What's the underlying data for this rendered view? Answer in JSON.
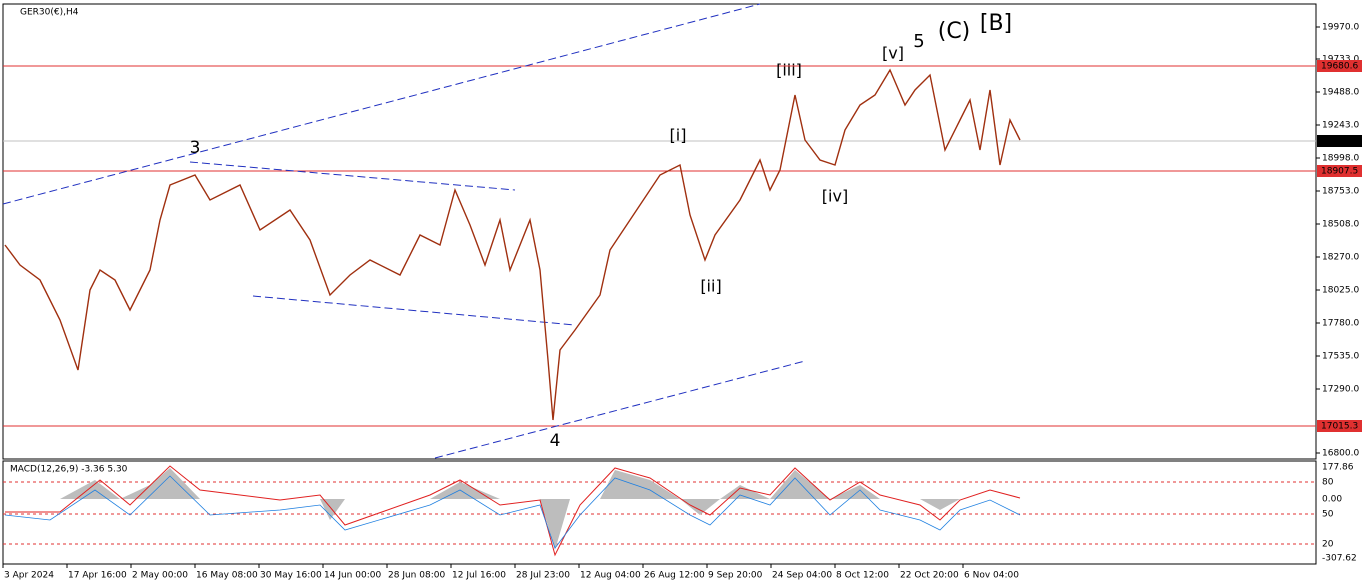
{
  "symbol": "GER30(€),H4",
  "price_axis": [
    "19970.0",
    "19733.0",
    "19488.0",
    "19243.0",
    "18998.0",
    "18753.0",
    "18508.0",
    "18270.0",
    "18025.0",
    "17780.0",
    "17535.0",
    "17290.0",
    "16800.0"
  ],
  "price_boxes": {
    "upper": "19680.6",
    "current": "19129.9",
    "middle": "18907.5",
    "lower": "17015.3"
  },
  "time_axis": [
    "3 Apr 2024",
    "17 Apr 16:00",
    "2 May 00:00",
    "16 May 08:00",
    "30 May 16:00",
    "14 Jun 00:00",
    "28 Jun 08:00",
    "12 Jul 16:00",
    "28 Jul 23:00",
    "12 Aug 04:00",
    "26 Aug 12:00",
    "9 Sep 20:00",
    "24 Sep 04:00",
    "8 Oct 12:00",
    "22 Oct 20:00",
    "6 Nov 04:00"
  ],
  "wave_labels": [
    "3",
    "4",
    "[i]",
    "[ii]",
    "[iii]",
    "[iv]",
    "[v]",
    "5",
    "(C)",
    "[B]"
  ],
  "macd": {
    "label": "MACD(12,26,9) -3.36 5.30",
    "axis": [
      "177.86",
      "80",
      "0.00",
      "50",
      "20",
      "-307.62"
    ]
  }
}
